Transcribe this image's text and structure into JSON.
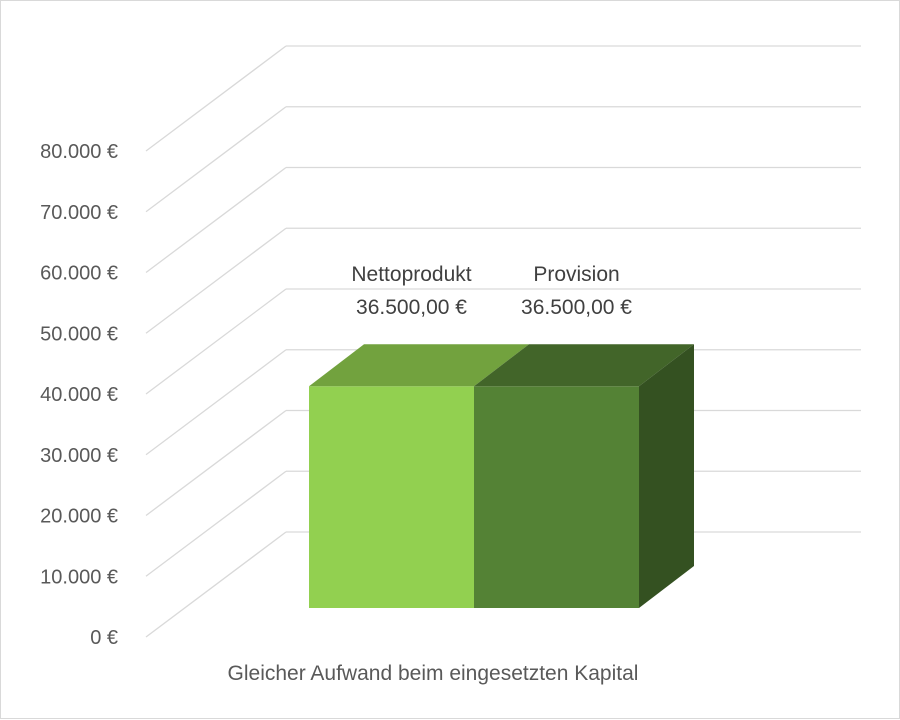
{
  "chart_data": {
    "type": "bar",
    "style": "3d-stacked-column",
    "categories": [
      "Gleicher Aufwand beim eingesetzten Kapital"
    ],
    "series": [
      {
        "name": "Nettoprodukt",
        "values": [
          36500
        ],
        "value_label": "36.500,00 €",
        "color": "#92d050"
      },
      {
        "name": "Provision",
        "values": [
          36500
        ],
        "value_label": "36.500,00 €",
        "color": "#548235"
      }
    ],
    "ylim": [
      0,
      80000
    ],
    "yticks": [
      {
        "value": 0,
        "label": "0 €"
      },
      {
        "value": 10000,
        "label": "10.000 €"
      },
      {
        "value": 20000,
        "label": "20.000 €"
      },
      {
        "value": 30000,
        "label": "30.000 €"
      },
      {
        "value": 40000,
        "label": "40.000 €"
      },
      {
        "value": 50000,
        "label": "50.000 €"
      },
      {
        "value": 60000,
        "label": "60.000 €"
      },
      {
        "value": 70000,
        "label": "70.000 €"
      },
      {
        "value": 80000,
        "label": "80.000 €"
      }
    ],
    "grid": true,
    "legend": "none"
  }
}
